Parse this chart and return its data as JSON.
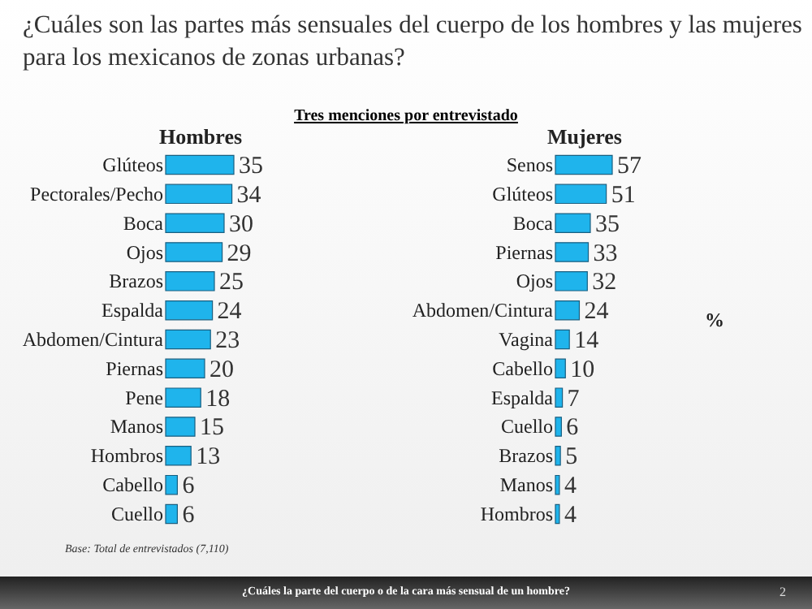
{
  "chart_data": [
    {
      "type": "bar",
      "orientation": "horizontal",
      "title": "¿Cuáles son las partes más sensuales del cuerpo de los hombres y las mujeres para los mexicanos de zonas urbanas?",
      "xlabel": "Hombres",
      "categories": [
        "Glúteos",
        "Pectorales/Pecho",
        "Boca",
        "Ojos",
        "Brazos",
        "Espalda",
        "Abdomen/Cintura",
        "Piernas",
        "Pene",
        "Manos",
        "Hombros",
        "Cabello",
        "Cuello"
      ],
      "values": [
        35,
        34,
        30,
        29,
        25,
        24,
        23,
        20,
        18,
        15,
        13,
        6,
        6
      ],
      "color": "#1fb4ec",
      "data_labels": true,
      "annotations": [
        "Tres menciones por entrevistado",
        "Base: Total de entrevistados (7,110)",
        "¿Cuáles la parte del cuerpo o de la cara más sensual de un hombre?",
        "2"
      ]
    },
    {
      "type": "bar",
      "orientation": "horizontal",
      "xlabel": "Mujeres",
      "categories": [
        "Senos",
        "Glúteos",
        "Boca",
        "Piernas",
        "Ojos",
        "Abdomen/Cintura",
        "Vagina",
        "Cabello",
        "Espalda",
        "Cuello",
        "Brazos",
        "Manos",
        "Hombros"
      ],
      "values": [
        57,
        51,
        35,
        33,
        32,
        24,
        14,
        10,
        7,
        6,
        5,
        4,
        4
      ],
      "color": "#1fb4ec",
      "data_labels": true,
      "annotations": [
        "%"
      ]
    }
  ]
}
